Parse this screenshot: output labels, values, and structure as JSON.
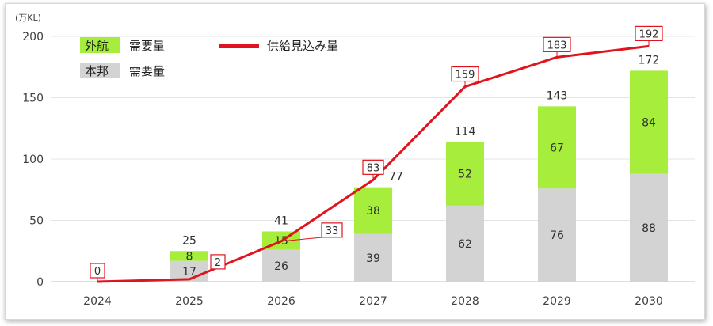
{
  "chart_data": {
    "type": "bar",
    "unit_label": "(万KL)",
    "categories": [
      "2024",
      "2025",
      "2026",
      "2027",
      "2028",
      "2029",
      "2030"
    ],
    "ylim": [
      0,
      200
    ],
    "yticks": [
      "0",
      "50",
      "100",
      "150",
      "200"
    ],
    "grid": true,
    "legend_position": "top-left",
    "series": [
      {
        "name": "本邦",
        "legend_suffix": "需要量",
        "kind": "bar",
        "stack": "demand",
        "color": "#d3d3d3",
        "values": [
          null,
          17,
          26,
          39,
          62,
          76,
          88
        ]
      },
      {
        "name": "外航",
        "legend_suffix": "需要量",
        "kind": "bar",
        "stack": "demand",
        "color": "#a6ee3b",
        "values": [
          null,
          8,
          15,
          38,
          52,
          67,
          84
        ]
      },
      {
        "name": "供給見込み量",
        "kind": "line",
        "color": "#e0141e",
        "values": [
          0,
          2,
          33,
          83,
          159,
          183,
          192
        ]
      }
    ],
    "totals": [
      null,
      25,
      41,
      77,
      114,
      143,
      172
    ]
  }
}
